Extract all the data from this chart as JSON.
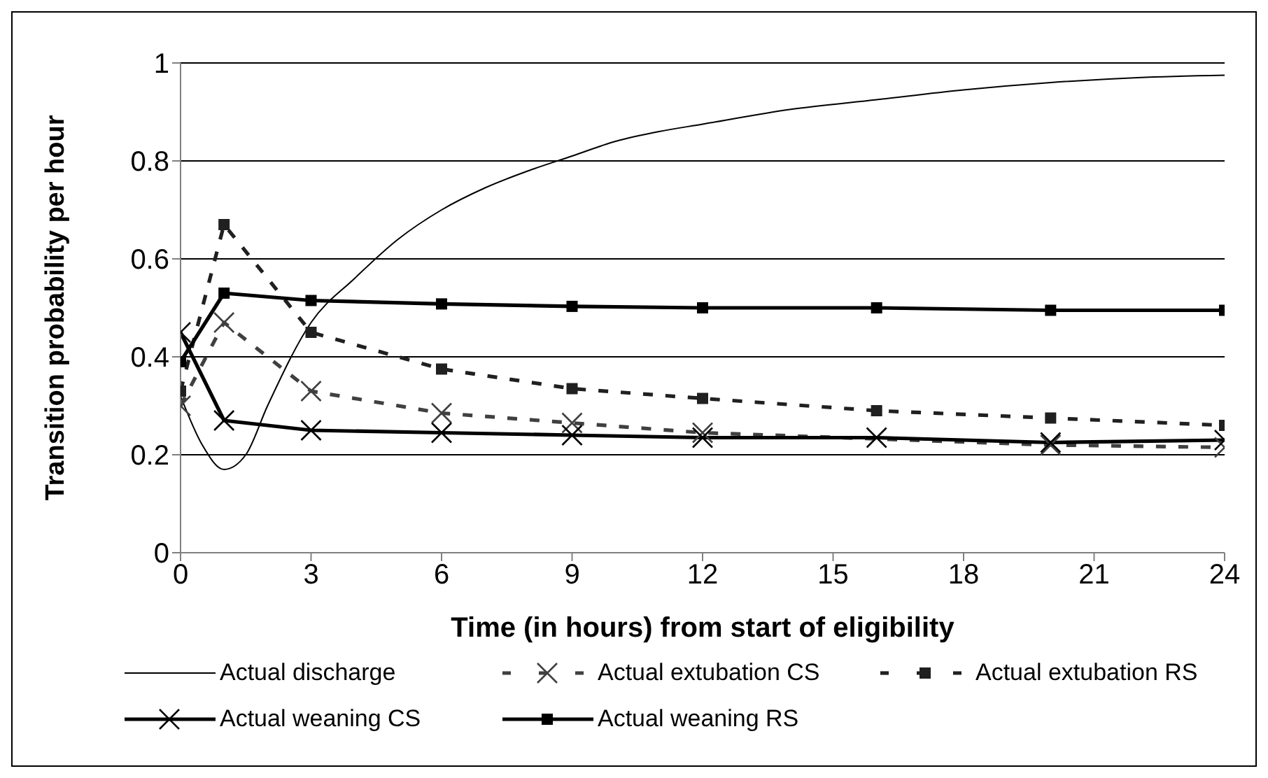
{
  "chart_data": {
    "type": "line",
    "xlabel": "Time (in hours) from start of eligibility",
    "ylabel": "Transition probability per hour",
    "xlim": [
      0,
      24
    ],
    "xticks": [
      0,
      3,
      6,
      9,
      12,
      15,
      18,
      21,
      24
    ],
    "ylim": [
      0,
      1
    ],
    "yticks": [
      0,
      0.2,
      0.4,
      0.6,
      0.8,
      1
    ],
    "grid": "y",
    "legend": "bottom",
    "series": [
      {
        "name": "Actual discharge",
        "color": "#000000",
        "marker": "none",
        "line_style": "solid",
        "x": [
          0,
          0.5,
          1,
          1.5,
          2,
          3,
          4,
          5,
          6,
          7,
          8,
          9,
          10,
          11,
          12,
          14,
          16,
          18,
          20,
          22,
          24
        ],
        "values": [
          0.32,
          0.22,
          0.17,
          0.2,
          0.3,
          0.47,
          0.56,
          0.64,
          0.7,
          0.745,
          0.78,
          0.81,
          0.84,
          0.86,
          0.875,
          0.905,
          0.925,
          0.945,
          0.96,
          0.97,
          0.975
        ]
      },
      {
        "name": "Actual extubation CS",
        "color": "#404040",
        "marker": "cross",
        "line_style": "dashed",
        "x": [
          0,
          1,
          3,
          6,
          9,
          12,
          16,
          20,
          24
        ],
        "values": [
          0.3,
          0.47,
          0.33,
          0.285,
          0.265,
          0.245,
          null,
          0.22,
          0.215
        ]
      },
      {
        "name": "Actual extubation RS",
        "color": "#202020",
        "marker": "square",
        "line_style": "dashed",
        "x": [
          0,
          1,
          3,
          6,
          9,
          12,
          16,
          20,
          24
        ],
        "values": [
          0.33,
          0.67,
          0.45,
          0.375,
          0.335,
          0.315,
          0.29,
          0.275,
          0.26
        ]
      },
      {
        "name": "Actual weaning CS",
        "color": "#000000",
        "marker": "cross",
        "line_style": "solid",
        "x": [
          0,
          1,
          3,
          6,
          9,
          12,
          16,
          20,
          24
        ],
        "values": [
          0.45,
          0.27,
          0.25,
          0.245,
          0.24,
          0.235,
          0.235,
          0.225,
          0.23
        ]
      },
      {
        "name": "Actual weaning RS",
        "color": "#000000",
        "marker": "square",
        "line_style": "solid",
        "x": [
          0,
          1,
          3,
          6,
          9,
          12,
          16,
          20,
          24
        ],
        "values": [
          0.39,
          0.53,
          0.515,
          0.508,
          0.503,
          0.5,
          0.5,
          0.495,
          0.495
        ]
      }
    ]
  }
}
